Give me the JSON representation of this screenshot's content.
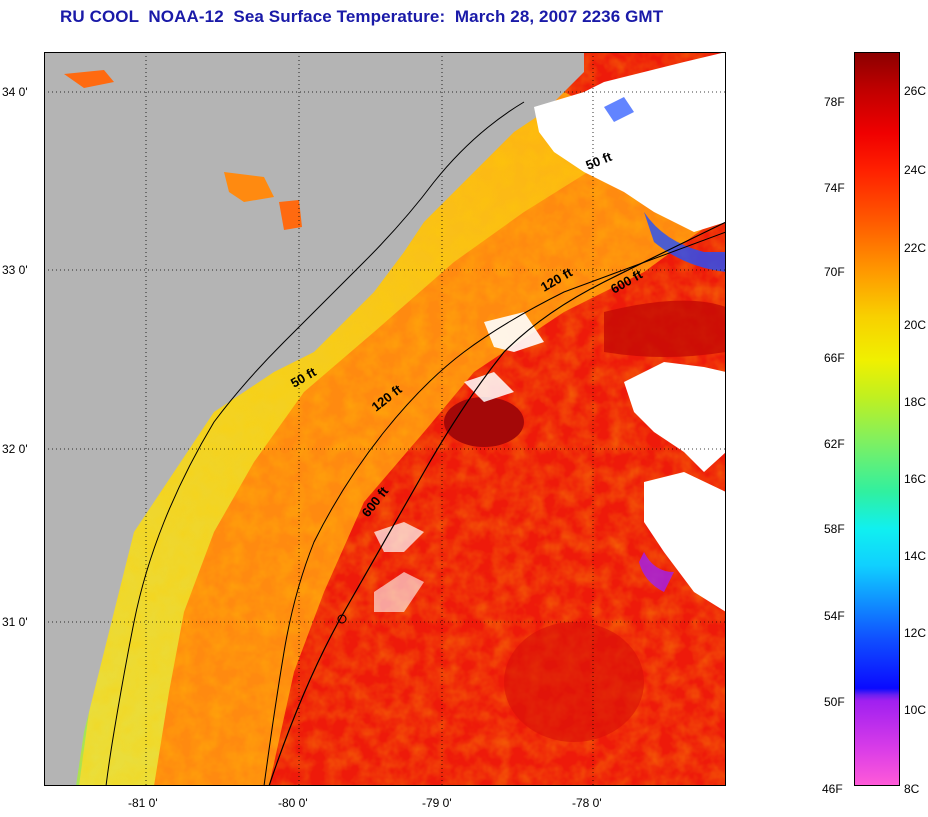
{
  "title": "RU COOL  NOAA-12  Sea Surface Temperature:  March 28, 2007 2236 GMT",
  "map": {
    "longitude_labels": [
      "-81 0'",
      "-80 0'",
      "-79 0'",
      "-78 0'"
    ],
    "latitude_labels": [
      "34 0'",
      "33 0'",
      "32 0'",
      "31 0'"
    ],
    "isobath_labels": [
      "50 ft",
      "50 ft",
      "120 ft",
      "120 ft",
      "600 ft",
      "600 ft"
    ],
    "colors": {
      "land": "#b4b4b4",
      "cloud": "#ffffff",
      "nearshore": "#9be660",
      "shelf": "#f0e020",
      "midshelf": "#ff9a10",
      "gulfstream": "#ee1a0a",
      "core": "#c80a05"
    }
  },
  "colorbar": {
    "fahrenheit_labels": [
      "78F",
      "74F",
      "70F",
      "66F",
      "62F",
      "58F",
      "54F",
      "50F",
      "46F"
    ],
    "celsius_labels": [
      "26C",
      "24C",
      "22C",
      "20C",
      "18C",
      "16C",
      "14C",
      "12C",
      "10C",
      "8C"
    ]
  }
}
